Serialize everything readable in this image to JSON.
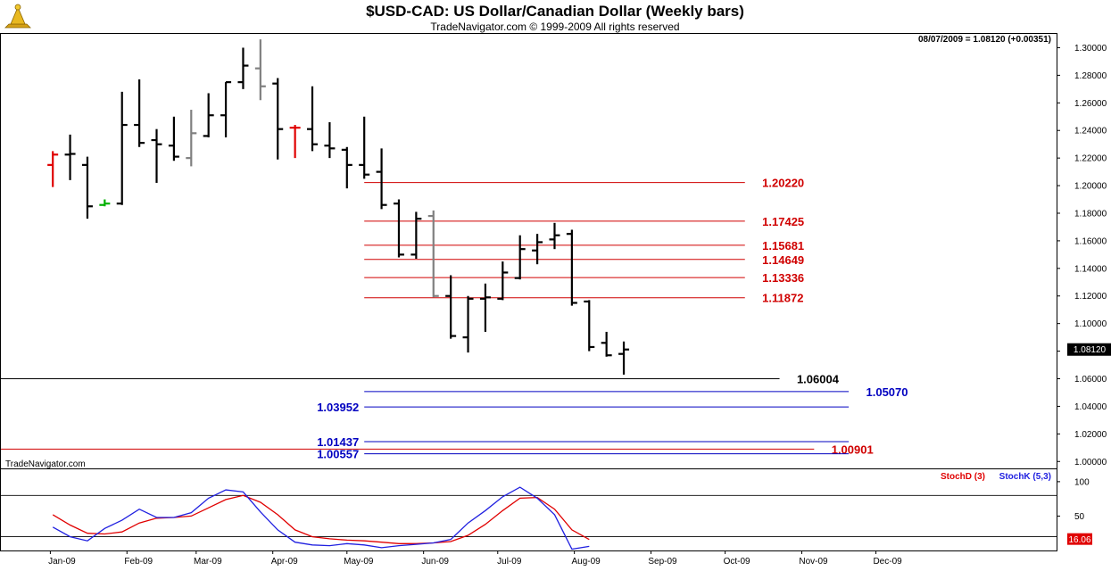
{
  "header": {
    "title": "$USD-CAD:  US Dollar/Canadian Dollar  (Weekly bars)",
    "subtitle": "TradeNavigator.com © 1999-2009 All rights reserved",
    "quote": "08/07/2009 = 1.08120 (+0.00351)",
    "watermark": "TradeNavigator.com"
  },
  "colors": {
    "up": "#000000",
    "down": "#000000",
    "neutral_gray": "#808080",
    "red": "#e00000",
    "green": "#00b000",
    "resistance": "#d00000",
    "support_blue": "#0000c0",
    "stoch_d": "#e00000",
    "stoch_k": "#2020e0"
  },
  "chart_data": [
    {
      "type": "ohlc",
      "title": "$USD-CAD:  US Dollar/Canadian Dollar  (Weekly bars)",
      "ylim": [
        0.995,
        1.31
      ],
      "y_ticks": [
        "1.00000",
        "1.02000",
        "1.04000",
        "1.06000",
        "1.08000",
        "1.10000",
        "1.12000",
        "1.14000",
        "1.16000",
        "1.18000",
        "1.20000",
        "1.22000",
        "1.24000",
        "1.26000",
        "1.28000",
        "1.30000"
      ],
      "x_ticks": [
        "Jan-09",
        "Feb-09",
        "Mar-09",
        "Apr-09",
        "May-09",
        "Jun-09",
        "Jul-09",
        "Aug-09",
        "Sep-09",
        "Oct-09",
        "Nov-09",
        "Dec-09"
      ],
      "last_price_label": "1.08120",
      "bars": [
        {
          "date": "2009-01-02",
          "o": 1.215,
          "h": 1.225,
          "l": 1.199,
          "c": 1.2225,
          "color": "red"
        },
        {
          "date": "2009-01-09",
          "o": 1.2225,
          "h": 1.237,
          "l": 1.204,
          "c": 1.223,
          "color": "black"
        },
        {
          "date": "2009-01-16",
          "o": 1.215,
          "h": 1.221,
          "l": 1.176,
          "c": 1.185,
          "color": "black"
        },
        {
          "date": "2009-01-23",
          "o": 1.186,
          "h": 1.19,
          "l": 1.185,
          "c": 1.187,
          "color": "green"
        },
        {
          "date": "2009-01-30",
          "o": 1.187,
          "h": 1.268,
          "l": 1.186,
          "c": 1.244,
          "color": "black"
        },
        {
          "date": "2009-02-06",
          "o": 1.244,
          "h": 1.277,
          "l": 1.228,
          "c": 1.231,
          "color": "black"
        },
        {
          "date": "2009-02-13",
          "o": 1.233,
          "h": 1.241,
          "l": 1.202,
          "c": 1.23,
          "color": "black"
        },
        {
          "date": "2009-02-20",
          "o": 1.229,
          "h": 1.25,
          "l": 1.218,
          "c": 1.221,
          "color": "black"
        },
        {
          "date": "2009-02-27",
          "o": 1.22,
          "h": 1.255,
          "l": 1.214,
          "c": 1.238,
          "color": "gray"
        },
        {
          "date": "2009-03-06",
          "o": 1.236,
          "h": 1.267,
          "l": 1.235,
          "c": 1.251,
          "color": "black"
        },
        {
          "date": "2009-03-13",
          "o": 1.251,
          "h": 1.275,
          "l": 1.235,
          "c": 1.275,
          "color": "black"
        },
        {
          "date": "2009-03-20",
          "o": 1.275,
          "h": 1.3,
          "l": 1.27,
          "c": 1.287,
          "color": "black"
        },
        {
          "date": "2009-03-27",
          "o": 1.285,
          "h": 1.306,
          "l": 1.262,
          "c": 1.272,
          "color": "gray"
        },
        {
          "date": "2009-04-03",
          "o": 1.274,
          "h": 1.278,
          "l": 1.219,
          "c": 1.241,
          "color": "black"
        },
        {
          "date": "2009-04-10",
          "o": 1.242,
          "h": 1.244,
          "l": 1.22,
          "c": 1.242,
          "color": "red"
        },
        {
          "date": "2009-04-17",
          "o": 1.241,
          "h": 1.272,
          "l": 1.225,
          "c": 1.23,
          "color": "black"
        },
        {
          "date": "2009-04-24",
          "o": 1.229,
          "h": 1.246,
          "l": 1.22,
          "c": 1.227,
          "color": "black"
        },
        {
          "date": "2009-05-01",
          "o": 1.226,
          "h": 1.228,
          "l": 1.198,
          "c": 1.215,
          "color": "black"
        },
        {
          "date": "2009-05-08",
          "o": 1.215,
          "h": 1.25,
          "l": 1.205,
          "c": 1.208,
          "color": "black"
        },
        {
          "date": "2009-05-15",
          "o": 1.21,
          "h": 1.227,
          "l": 1.183,
          "c": 1.186,
          "color": "black"
        },
        {
          "date": "2009-05-22",
          "o": 1.187,
          "h": 1.19,
          "l": 1.148,
          "c": 1.15,
          "color": "black"
        },
        {
          "date": "2009-05-29",
          "o": 1.15,
          "h": 1.181,
          "l": 1.147,
          "c": 1.176,
          "color": "black"
        },
        {
          "date": "2009-06-05",
          "o": 1.178,
          "h": 1.182,
          "l": 1.119,
          "c": 1.12,
          "color": "gray"
        },
        {
          "date": "2009-06-12",
          "o": 1.12,
          "h": 1.135,
          "l": 1.089,
          "c": 1.091,
          "color": "black"
        },
        {
          "date": "2009-06-19",
          "o": 1.09,
          "h": 1.12,
          "l": 1.079,
          "c": 1.118,
          "color": "black"
        },
        {
          "date": "2009-06-26",
          "o": 1.118,
          "h": 1.129,
          "l": 1.094,
          "c": 1.119,
          "color": "black"
        },
        {
          "date": "2009-07-03",
          "o": 1.118,
          "h": 1.145,
          "l": 1.117,
          "c": 1.137,
          "color": "black"
        },
        {
          "date": "2009-07-10",
          "o": 1.133,
          "h": 1.164,
          "l": 1.132,
          "c": 1.154,
          "color": "black"
        },
        {
          "date": "2009-07-17",
          "o": 1.153,
          "h": 1.165,
          "l": 1.143,
          "c": 1.159,
          "color": "black"
        },
        {
          "date": "2009-07-24",
          "o": 1.161,
          "h": 1.173,
          "l": 1.154,
          "c": 1.164,
          "color": "black"
        },
        {
          "date": "2009-07-31",
          "o": 1.165,
          "h": 1.168,
          "l": 1.113,
          "c": 1.115,
          "color": "black"
        },
        {
          "date": "2009-08-07",
          "o": 1.116,
          "h": 1.117,
          "l": 1.08,
          "c": 1.083,
          "color": "black"
        },
        {
          "date": "2009-08-14",
          "o": 1.086,
          "h": 1.094,
          "l": 1.076,
          "c": 1.077,
          "color": "black"
        },
        {
          "date": "2009-08-21",
          "o": 1.078,
          "h": 1.087,
          "l": 1.063,
          "c": 1.0812,
          "color": "black"
        }
      ],
      "levels": [
        {
          "value": 1.2022,
          "label": "1.20220",
          "color": "resistance",
          "x_from": "2009-05-08",
          "x_to": "2009-10-09",
          "label_date": "2009-10-16"
        },
        {
          "value": 1.17425,
          "label": "1.17425",
          "color": "resistance",
          "x_from": "2009-05-08",
          "x_to": "2009-10-09",
          "label_date": "2009-10-16"
        },
        {
          "value": 1.15681,
          "label": "1.15681",
          "color": "resistance",
          "x_from": "2009-05-08",
          "x_to": "2009-10-09",
          "label_date": "2009-10-16"
        },
        {
          "value": 1.14649,
          "label": "1.14649",
          "color": "resistance",
          "x_from": "2009-05-08",
          "x_to": "2009-10-09",
          "label_date": "2009-10-16"
        },
        {
          "value": 1.13336,
          "label": "1.13336",
          "color": "resistance",
          "x_from": "2009-05-08",
          "x_to": "2009-10-09",
          "label_date": "2009-10-16"
        },
        {
          "value": 1.11872,
          "label": "1.11872",
          "color": "resistance",
          "x_from": "2009-05-08",
          "x_to": "2009-10-09",
          "label_date": "2009-10-16"
        },
        {
          "value": 1.06004,
          "label": "1.06004",
          "color": "black",
          "x_from": "2008-12-01",
          "x_to": "2009-10-23",
          "label_date": "2009-10-30"
        },
        {
          "value": 1.0507,
          "label": "1.05070",
          "color": "support_blue",
          "x_from": "2009-05-08",
          "x_to": "2009-11-20",
          "label_date": "2009-11-27"
        },
        {
          "value": 1.03952,
          "label": "1.03952",
          "color": "support_blue",
          "x_from": "2009-05-08",
          "x_to": "2009-11-20",
          "label_date": "2009-04-17"
        },
        {
          "value": 1.01437,
          "label": "1.01437",
          "color": "support_blue",
          "x_from": "2009-05-08",
          "x_to": "2009-11-20",
          "label_date": "2009-04-17"
        },
        {
          "value": 1.00901,
          "label": "1.00901",
          "color": "resistance",
          "x_from": "2008-12-01",
          "x_to": "2009-11-06",
          "label_date": "2009-11-13"
        },
        {
          "value": 1.00557,
          "label": "1.00557",
          "color": "support_blue",
          "x_from": "2009-05-08",
          "x_to": "2009-11-20",
          "label_date": "2009-04-17"
        }
      ]
    },
    {
      "type": "line",
      "legend": [
        "StochD (3)",
        "StochK (5,3)"
      ],
      "ylim": [
        0,
        118
      ],
      "y_ticks": [
        "100",
        "50"
      ],
      "reference_lines": [
        80,
        20
      ],
      "last_value_label": "16.06",
      "series": [
        {
          "name": "StochD (3)",
          "color": "stoch_d",
          "values": [
            52,
            37,
            25,
            24,
            27,
            40,
            47,
            48,
            50,
            62,
            74,
            80,
            70,
            52,
            30,
            20,
            17,
            15,
            14,
            12,
            10,
            10,
            11,
            13,
            22,
            38,
            58,
            76,
            77,
            60,
            30,
            16
          ]
        },
        {
          "name": "StochK (5,3)",
          "color": "stoch_k",
          "values": [
            34,
            20,
            14,
            32,
            44,
            60,
            48,
            48,
            55,
            76,
            88,
            85,
            56,
            30,
            12,
            8,
            7,
            10,
            8,
            4,
            7,
            9,
            11,
            16,
            40,
            58,
            78,
            92,
            76,
            52,
            2,
            6
          ]
        }
      ]
    }
  ]
}
